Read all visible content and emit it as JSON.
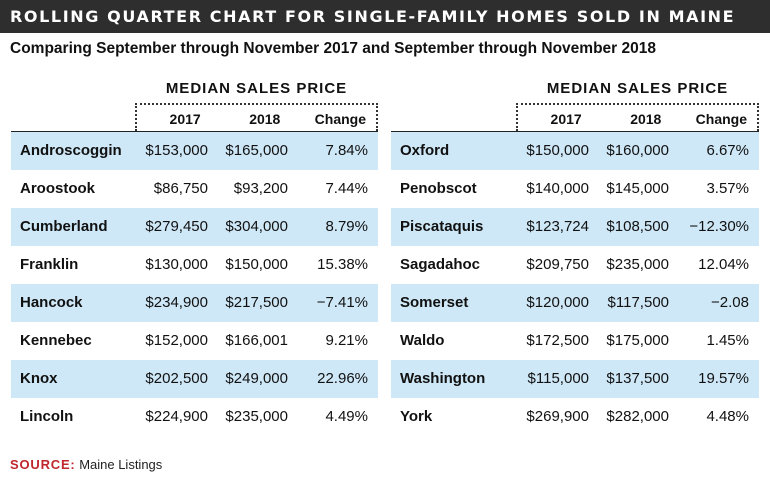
{
  "title": "ROLLING QUARTER CHART FOR SINGLE-FAMILY HOMES SOLD IN MAINE",
  "subtitle": "Comparing September through November 2017 and September through November 2018",
  "source_label": "SOURCE:",
  "source_text": "Maine Listings",
  "chart_data": {
    "type": "table",
    "group_header": "MEDIAN SALES PRICE",
    "columns": [
      "2017",
      "2018",
      "Change"
    ],
    "panels": [
      {
        "rows": [
          {
            "county": "Androscoggin",
            "y2017": "$153,000",
            "y2018": "$165,000",
            "change": "7.84%"
          },
          {
            "county": "Aroostook",
            "y2017": "$86,750",
            "y2018": "$93,200",
            "change": "7.44%"
          },
          {
            "county": "Cumberland",
            "y2017": "$279,450",
            "y2018": "$304,000",
            "change": "8.79%"
          },
          {
            "county": "Franklin",
            "y2017": "$130,000",
            "y2018": "$150,000",
            "change": "15.38%"
          },
          {
            "county": "Hancock",
            "y2017": "$234,900",
            "y2018": "$217,500",
            "change": "−7.41%"
          },
          {
            "county": "Kennebec",
            "y2017": "$152,000",
            "y2018": "$166,001",
            "change": "9.21%"
          },
          {
            "county": "Knox",
            "y2017": "$202,500",
            "y2018": "$249,000",
            "change": "22.96%"
          },
          {
            "county": "Lincoln",
            "y2017": "$224,900",
            "y2018": "$235,000",
            "change": "4.49%"
          }
        ]
      },
      {
        "rows": [
          {
            "county": "Oxford",
            "y2017": "$150,000",
            "y2018": "$160,000",
            "change": "6.67%"
          },
          {
            "county": "Penobscot",
            "y2017": "$140,000",
            "y2018": "$145,000",
            "change": "3.57%"
          },
          {
            "county": "Piscataquis",
            "y2017": "$123,724",
            "y2018": "$108,500",
            "change": "−12.30%"
          },
          {
            "county": "Sagadahoc",
            "y2017": "$209,750",
            "y2018": "$235,000",
            "change": "12.04%"
          },
          {
            "county": "Somerset",
            "y2017": "$120,000",
            "y2018": "$117,500",
            "change": "−2.08"
          },
          {
            "county": "Waldo",
            "y2017": "$172,500",
            "y2018": "$175,000",
            "change": "1.45%"
          },
          {
            "county": "Washington",
            "y2017": "$115,000",
            "y2018": "$137,500",
            "change": "19.57%"
          },
          {
            "county": "York",
            "y2017": "$269,900",
            "y2018": "$282,000",
            "change": "4.48%"
          }
        ]
      }
    ]
  },
  "colors": {
    "title_bg": "#2e2e2e",
    "row_shade": "#cfe8f7",
    "source_label": "#c0272d"
  }
}
